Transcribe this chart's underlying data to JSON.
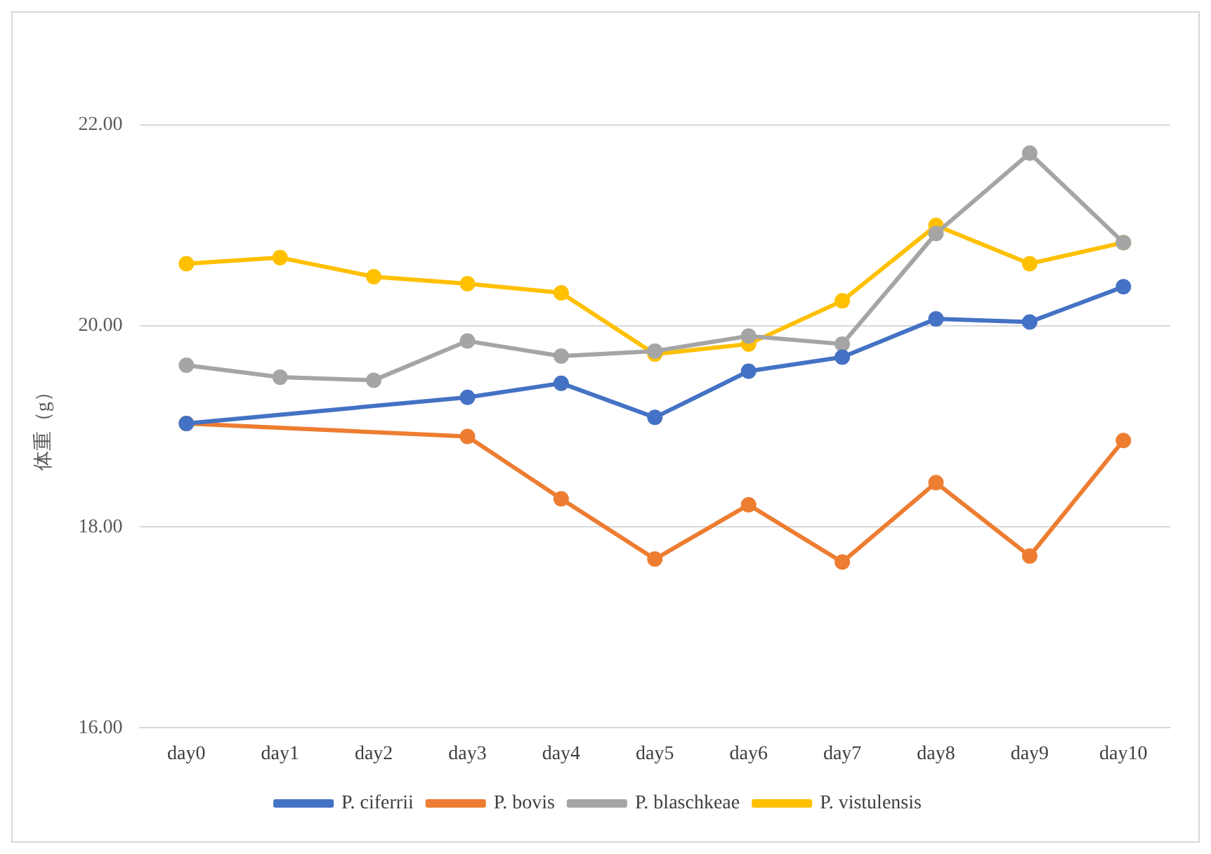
{
  "chart_data": {
    "type": "line",
    "ylabel": "体重（g）",
    "categories": [
      "day0",
      "day1",
      "day2",
      "day3",
      "day4",
      "day5",
      "day6",
      "day7",
      "day8",
      "day9",
      "day10"
    ],
    "series": [
      {
        "name": "P. ciferrii",
        "color": "#4472c4",
        "values": [
          19.03,
          null,
          null,
          19.29,
          19.43,
          19.09,
          19.55,
          19.69,
          20.07,
          20.04,
          20.39
        ]
      },
      {
        "name": "P. bovis",
        "color": "#ed7d31",
        "values": [
          19.03,
          null,
          null,
          18.9,
          18.28,
          17.68,
          18.22,
          17.65,
          18.44,
          17.71,
          18.86
        ]
      },
      {
        "name": "P. blaschkeae",
        "color": "#a5a5a5",
        "values": [
          19.61,
          19.49,
          19.46,
          19.85,
          19.7,
          19.75,
          19.9,
          19.82,
          20.92,
          21.72,
          20.83
        ]
      },
      {
        "name": "P. vistulensis",
        "color": "#ffc000",
        "values": [
          20.62,
          20.68,
          20.49,
          20.42,
          20.33,
          19.72,
          19.82,
          20.25,
          21.0,
          20.62,
          20.83
        ]
      }
    ],
    "ylim": [
      16,
      22
    ],
    "yticks": [
      {
        "value": 16,
        "label": "16.00"
      },
      {
        "value": 18,
        "label": "18.00"
      },
      {
        "value": 20,
        "label": "20.00"
      },
      {
        "value": 22,
        "label": "22.00"
      }
    ],
    "grid": "y",
    "legend": "bottom",
    "marker": "circle",
    "line_style": "solid"
  }
}
